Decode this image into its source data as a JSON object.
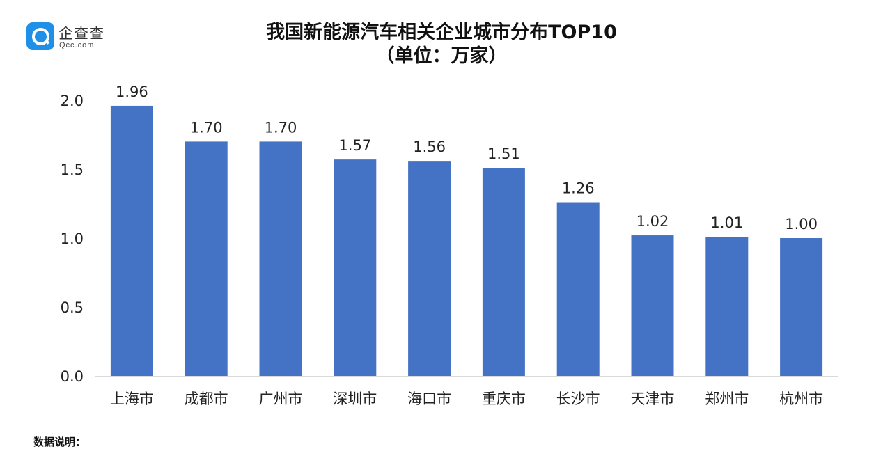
{
  "brand": {
    "name": "企查查",
    "domain": "Qcc.com",
    "logo_icon": "magnifier-logo-icon",
    "color": "#1e90e8"
  },
  "note_label": "数据说明：",
  "chart_data": {
    "type": "bar",
    "title": "我国新能源汽车相关企业城市分布TOP10",
    "subtitle": "（单位：万家）",
    "categories": [
      "上海市",
      "成都市",
      "广州市",
      "深圳市",
      "海口市",
      "重庆市",
      "长沙市",
      "天津市",
      "郑州市",
      "杭州市"
    ],
    "series": [
      {
        "values": [
          1.96,
          1.7,
          1.7,
          1.57,
          1.56,
          1.51,
          1.26,
          1.02,
          1.01,
          1.0
        ]
      }
    ],
    "data_labels": [
      "1.96",
      "1.70",
      "1.70",
      "1.57",
      "1.56",
      "1.51",
      "1.26",
      "1.02",
      "1.01",
      "1.00"
    ],
    "ylim": [
      0,
      2.0
    ],
    "yticks": [
      0,
      0.5,
      1.0,
      1.5,
      2.0
    ],
    "ytick_labels": [
      "0.0",
      "0.5",
      "1.0",
      "1.5",
      "2.0"
    ],
    "xlabel": "",
    "ylabel": "",
    "grid": false,
    "legend": "none",
    "bar_color": "#4472c4"
  }
}
